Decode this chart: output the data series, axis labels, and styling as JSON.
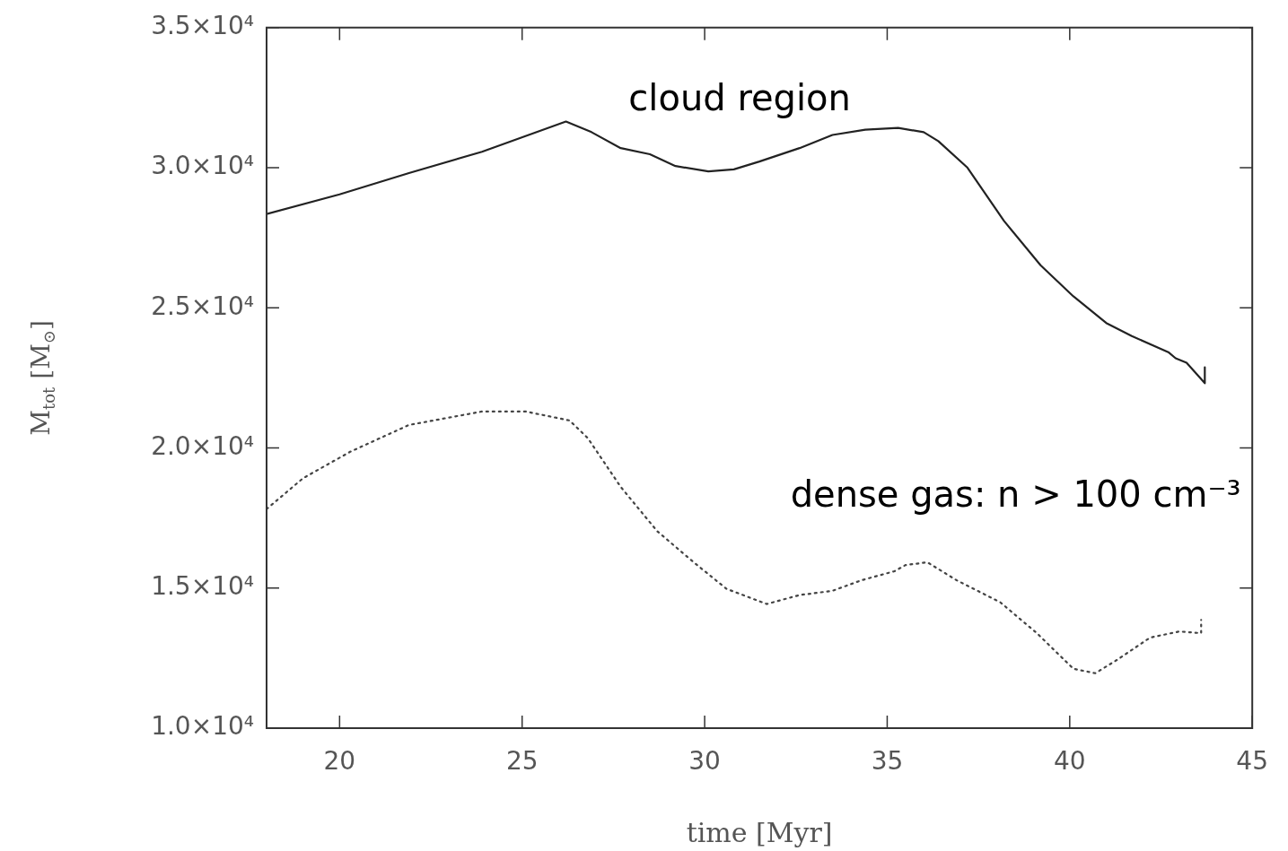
{
  "chart_data": {
    "type": "line",
    "xlabel": "time [Myr]",
    "ylabel": "M$_{tot}$ [M$_{⊙}$]",
    "xlim": [
      18,
      45
    ],
    "xticks": [
      20,
      25,
      30,
      35,
      40,
      45
    ],
    "ylim": [
      10000,
      35000
    ],
    "yticks": [
      {
        "value": 10000,
        "label": "1.0×10⁴"
      },
      {
        "value": 15000,
        "label": "1.5×10⁴"
      },
      {
        "value": 20000,
        "label": "2.0×10⁴"
      },
      {
        "value": 25000,
        "label": "2.5×10⁴"
      },
      {
        "value": 30000,
        "label": "3.0×10⁴"
      },
      {
        "value": 35000,
        "label": "3.5×10⁴"
      }
    ],
    "grid": false,
    "legend": false,
    "marker": "none",
    "series": [
      {
        "color": "#222222",
        "line_style": "solid",
        "x": [
          18,
          20,
          21.9,
          23.9,
          26.2,
          26.9,
          27.7,
          28.5,
          29.2,
          30.1,
          30.8,
          31.5,
          32.6,
          33.5,
          34.4,
          35.3,
          36.0,
          36.4,
          37.2,
          38.2,
          39.2,
          40.1,
          41.0,
          41.7,
          42.7,
          42.9,
          43.2,
          43.7,
          43.7
        ],
        "values": [
          28350,
          29050,
          29810,
          30570,
          31650,
          31270,
          30700,
          30480,
          30060,
          29870,
          29940,
          30220,
          30700,
          31170,
          31360,
          31420,
          31270,
          30950,
          30000,
          28100,
          26520,
          25410,
          24460,
          23990,
          23420,
          23200,
          23040,
          22310,
          22880
        ]
      },
      {
        "color": "#444444",
        "line_style": "dotted",
        "x": [
          18,
          19.0,
          20.3,
          21.9,
          23.9,
          25.1,
          26.3,
          26.8,
          27.7,
          28.7,
          29.7,
          30.6,
          31.7,
          32.6,
          33.5,
          34.3,
          35.2,
          35.5,
          36.1,
          36.9,
          38.1,
          39.1,
          40.1,
          40.7,
          41.3,
          42.2,
          43.0,
          43.6,
          43.6
        ],
        "values": [
          17820,
          18920,
          19870,
          20820,
          21300,
          21300,
          20980,
          20350,
          18610,
          17030,
          15920,
          14970,
          14430,
          14750,
          14900,
          15280,
          15600,
          15820,
          15920,
          15280,
          14490,
          13390,
          12120,
          11960,
          12440,
          13230,
          13450,
          13390,
          13860
        ]
      }
    ],
    "annotations": [
      "cloud region",
      "dense gas: n > 100 cm⁻³"
    ]
  }
}
